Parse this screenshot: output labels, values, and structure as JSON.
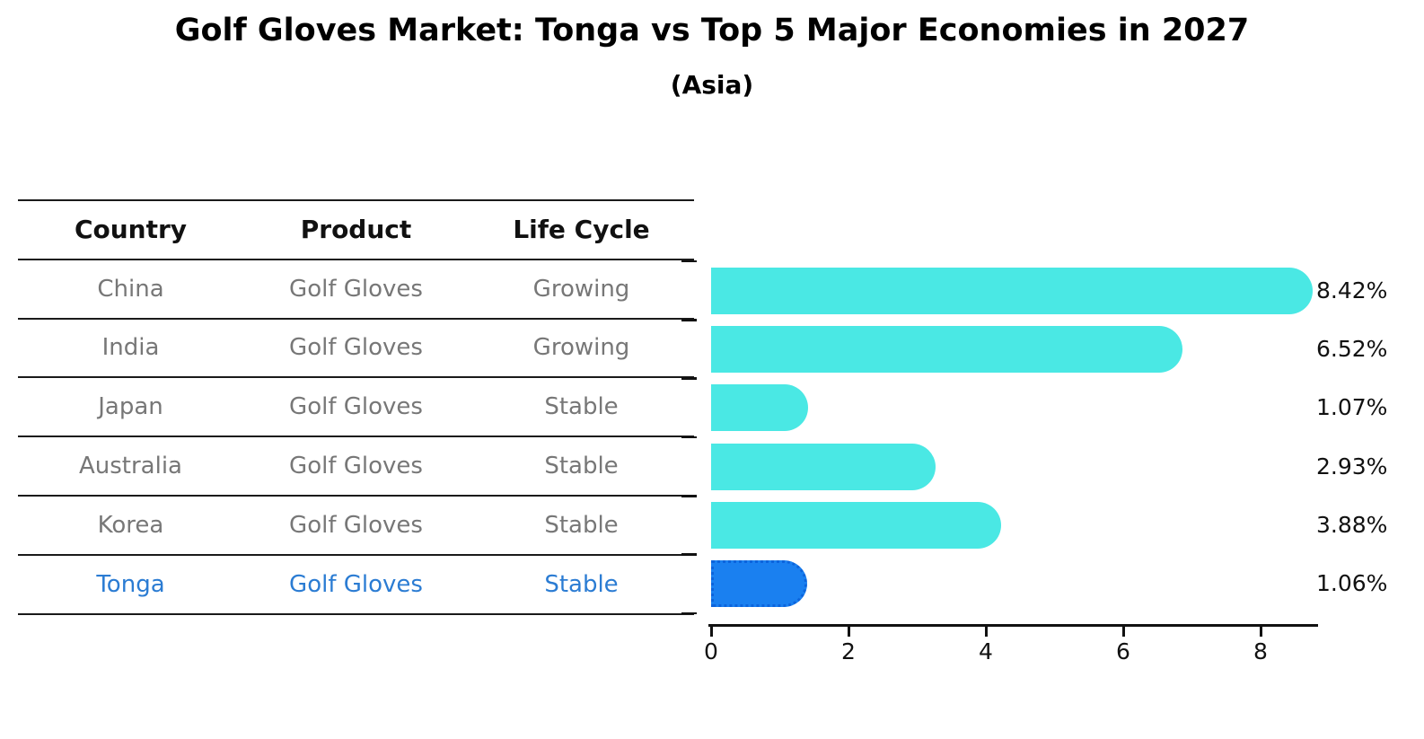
{
  "title": "Golf Gloves Market: Tonga vs Top 5 Major Economies in 2027",
  "subtitle": "(Asia)",
  "table": {
    "headers": [
      "Country",
      "Product",
      "Life Cycle"
    ],
    "rows": [
      {
        "country": "China",
        "product": "Golf Gloves",
        "life_cycle": "Growing",
        "highlight": false
      },
      {
        "country": "India",
        "product": "Golf Gloves",
        "life_cycle": "Growing",
        "highlight": false
      },
      {
        "country": "Japan",
        "product": "Golf Gloves",
        "life_cycle": "Stable",
        "highlight": false
      },
      {
        "country": "Australia",
        "product": "Golf Gloves",
        "life_cycle": "Stable",
        "highlight": false
      },
      {
        "country": "Korea",
        "product": "Golf Gloves",
        "life_cycle": "Stable",
        "highlight": false
      },
      {
        "country": "Tonga",
        "product": "Golf Gloves",
        "life_cycle": "Stable",
        "highlight": true
      }
    ]
  },
  "chart_data": {
    "type": "bar",
    "orientation": "horizontal",
    "categories": [
      "China",
      "India",
      "Japan",
      "Australia",
      "Korea",
      "Tonga"
    ],
    "values": [
      8.42,
      6.52,
      1.07,
      2.93,
      3.88,
      1.06
    ],
    "value_labels": [
      "8.42%",
      "6.52%",
      "1.07%",
      "2.93%",
      "3.88%",
      "1.06%"
    ],
    "xticks": [
      0,
      2,
      4,
      6,
      8
    ],
    "xlim": [
      0,
      8.85
    ],
    "grid": false,
    "legend": "none",
    "highlight_index": 5
  },
  "colors": {
    "bar_fill": "#4AE8E4",
    "highlight_fill": "#1A80F0",
    "highlight_text": "#2B7CD3",
    "cell_text": "#777777",
    "header_text": "#111111",
    "axis": "#111111"
  }
}
